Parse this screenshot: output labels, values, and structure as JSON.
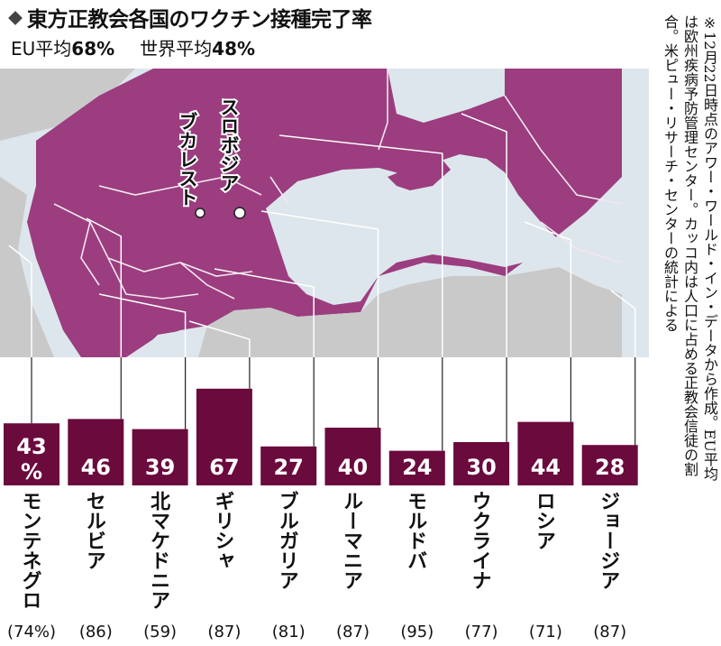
{
  "title": "東方正教会各国のワクチン接種完了率",
  "averages": {
    "eu_label": "EU平均",
    "eu_value": "68%",
    "world_label": "世界平均",
    "world_value": "48%"
  },
  "note": "※12月22日時点のアワー・ワールド・イン・データから作成。EU平均は欧州疾病予防管理センター。カッコ内は人口に占める正教会信徒の割合。米ピュー・リサーチ・センターの統計による",
  "cities": [
    "スロボジア",
    "ブカレスト"
  ],
  "colors": {
    "map_purple": "#9b3d7f",
    "sea": "#dde6ec",
    "land_gray": "#c9c9c9",
    "bar": "#6a0a3d",
    "bar_text": "#ffffff"
  },
  "chart_data": {
    "type": "bar",
    "categories": [
      "モンテネグロ",
      "セルビア",
      "北マケドニア",
      "ギリシャ",
      "ブルガリア",
      "ルーマニア",
      "モルドバ",
      "ウクライナ",
      "ロシア",
      "ジョージア"
    ],
    "values": [
      43,
      46,
      39,
      67,
      27,
      40,
      24,
      30,
      44,
      28
    ],
    "value_labels": [
      "43%",
      "46",
      "39",
      "67",
      "27",
      "40",
      "24",
      "30",
      "44",
      "28"
    ],
    "orthodox_share_labels": [
      "(74%)",
      "(86)",
      "(59)",
      "(87)",
      "(81)",
      "(87)",
      "(95)",
      "(77)",
      "(71)",
      "(87)"
    ],
    "orthodox_share": [
      74,
      86,
      59,
      87,
      81,
      87,
      95,
      77,
      71,
      87
    ],
    "unit": "%",
    "ylim": [
      0,
      67
    ]
  }
}
